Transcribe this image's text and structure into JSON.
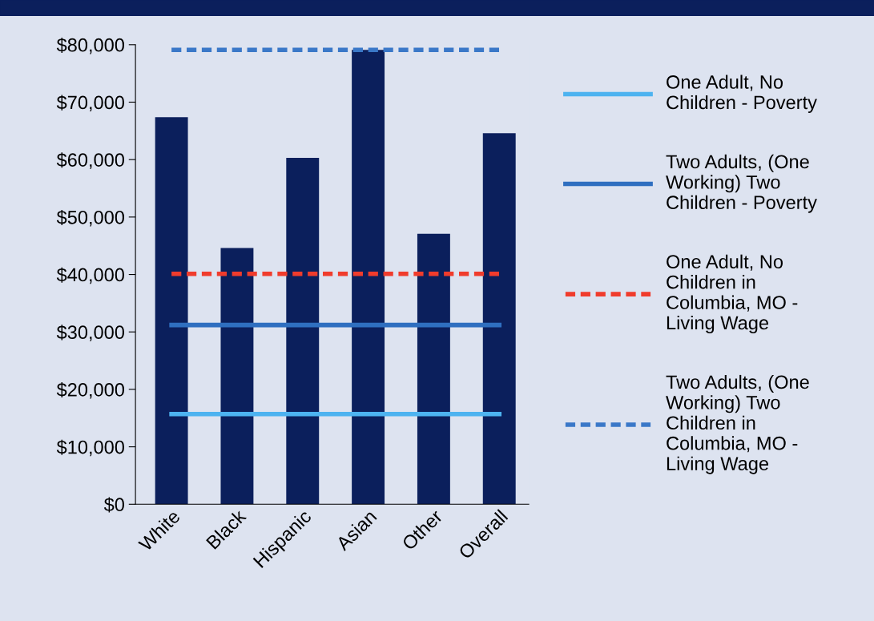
{
  "chart_data": {
    "type": "bar",
    "categories": [
      "White",
      "Black",
      "Hispanic",
      "Asian",
      "Other",
      "Overall"
    ],
    "series": [
      {
        "color": "#0b1f5c",
        "values": [
          67400,
          44600,
          60300,
          79100,
          47100,
          64600
        ]
      },
      {
        "type": "line",
        "name": "One Adult, No Children - Poverty",
        "color": "#4db3f0",
        "line_style": "solid",
        "values": [
          15700,
          15700,
          15700,
          15700,
          15700,
          15700
        ]
      },
      {
        "type": "line",
        "name": "Two Adults, (One Working) Two Children - Poverty",
        "color": "#2f6fc0",
        "line_style": "solid",
        "values": [
          31200,
          31200,
          31200,
          31200,
          31200,
          31200
        ]
      },
      {
        "type": "line",
        "name": "One Adult, No Children in Columbia, MO - Living Wage",
        "color": "#f03c2c",
        "line_style": "dashed",
        "values": [
          40100,
          40100,
          40100,
          40100,
          40100,
          40100
        ]
      },
      {
        "type": "line",
        "name": "Two Adults, (One Working) Two Children in Columbia, MO - Living Wage",
        "color": "#3a78c8",
        "line_style": "dashed",
        "values": [
          79100,
          79100,
          79100,
          79100,
          79100,
          79100
        ]
      }
    ],
    "ylim": [
      0,
      80000
    ],
    "yticks": [
      {
        "value": 0,
        "label": "$0"
      },
      {
        "value": 10000,
        "label": "$10,000"
      },
      {
        "value": 20000,
        "label": "$20,000"
      },
      {
        "value": 30000,
        "label": "$30,000"
      },
      {
        "value": 40000,
        "label": "$40,000"
      },
      {
        "value": 50000,
        "label": "$50,000"
      },
      {
        "value": 60000,
        "label": "$60,000"
      },
      {
        "value": 70000,
        "label": "$70,000"
      },
      {
        "value": 80000,
        "label": "$80,000"
      }
    ],
    "grid": false,
    "legend": "right",
    "marker": "none"
  }
}
